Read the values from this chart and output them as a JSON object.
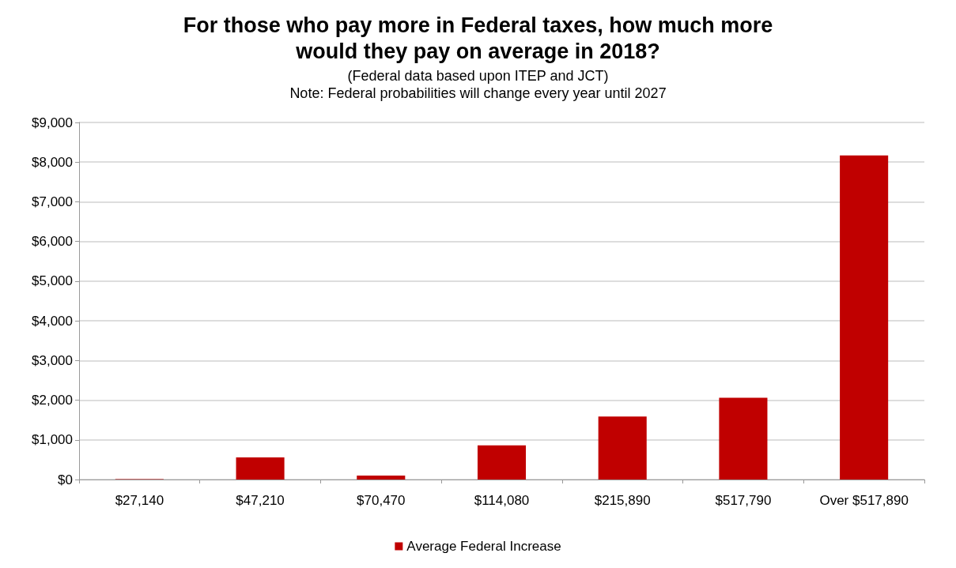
{
  "chart_data": {
    "type": "bar",
    "title": "For those who pay more in Federal taxes, how much more\nwould they pay on average in 2018?",
    "subtitle": "(Federal data based upon ITEP and JCT)\nNote: Federal probabilities will change every year until 2027",
    "categories": [
      "$27,140",
      "$47,210",
      "$70,470",
      "$114,080",
      "$215,890",
      "$517,790",
      "Over $517,890"
    ],
    "series": [
      {
        "name": "Average Federal Increase",
        "color": "#c00000",
        "values": [
          10,
          560,
          100,
          860,
          1590,
          2060,
          8170
        ]
      }
    ],
    "ylim": [
      0,
      9000
    ],
    "yticks": [
      {
        "value": 0,
        "label": "$0"
      },
      {
        "value": 1000,
        "label": "$1,000"
      },
      {
        "value": 2000,
        "label": "$2,000"
      },
      {
        "value": 3000,
        "label": "$3,000"
      },
      {
        "value": 4000,
        "label": "$4,000"
      },
      {
        "value": 5000,
        "label": "$5,000"
      },
      {
        "value": 6000,
        "label": "$6,000"
      },
      {
        "value": 7000,
        "label": "$7,000"
      },
      {
        "value": 8000,
        "label": "$8,000"
      },
      {
        "value": 9000,
        "label": "$9,000"
      }
    ],
    "grid": "y",
    "legend": "bottom"
  }
}
